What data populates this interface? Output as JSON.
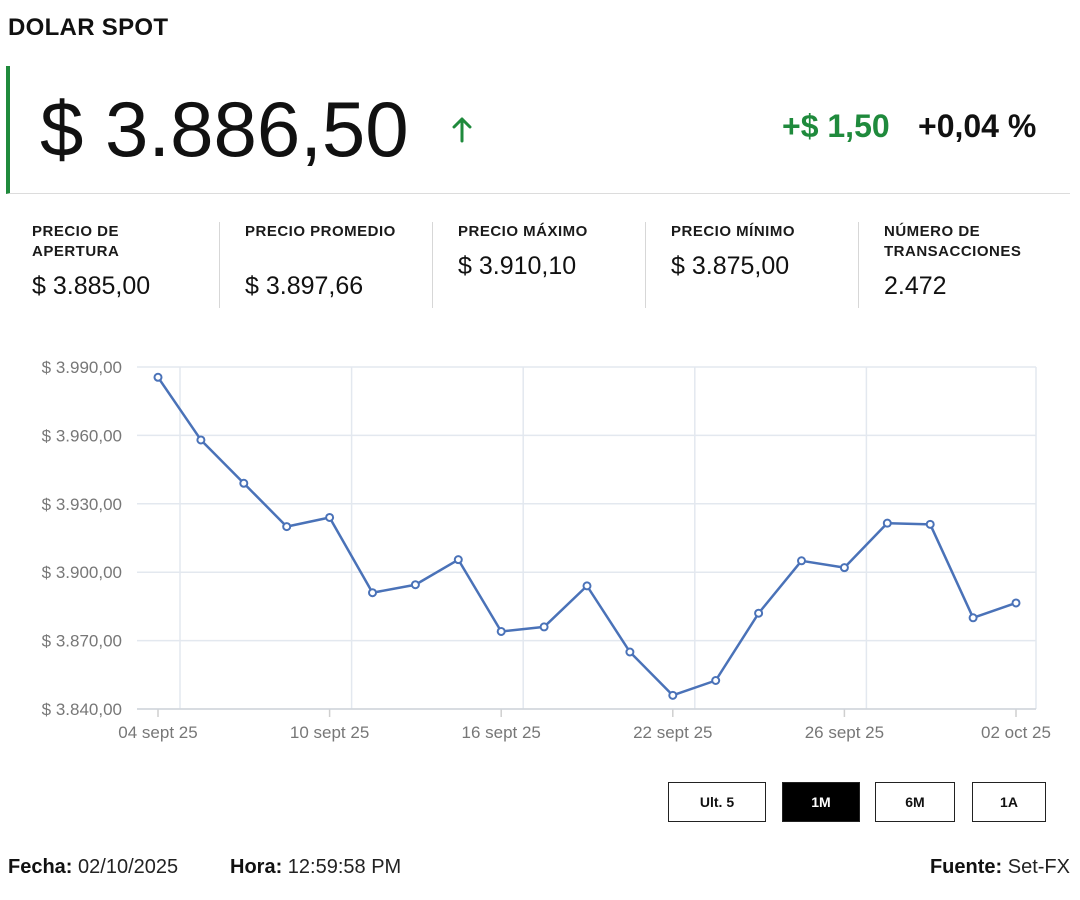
{
  "header": {
    "title": "DOLAR SPOT"
  },
  "quote": {
    "price": "$ 3.886,50",
    "direction_icon": "arrow-up-icon",
    "change": "+$ 1,50",
    "change_pct": "+0,04 %",
    "up_color": "#1f8a3c"
  },
  "stats": [
    {
      "label": "PRECIO DE APERTURA",
      "value": "$ 3.885,00"
    },
    {
      "label": "PRECIO PROMEDIO",
      "value": "$ 3.897,66"
    },
    {
      "label": "PRECIO MÁXIMO",
      "value": "$ 3.910,10"
    },
    {
      "label": "PRECIO MÍNIMO",
      "value": "$ 3.875,00"
    },
    {
      "label": "NÚMERO DE TRANSACCIONES",
      "value": "2.472"
    }
  ],
  "chart_data": {
    "type": "line",
    "line_color": "#4a72b8",
    "grid": true,
    "ylim": [
      3840,
      3990
    ],
    "y_ticks": [
      "$ 3.990,00",
      "$ 3.960,00",
      "$ 3.930,00",
      "$ 3.900,00",
      "$ 3.870,00",
      "$ 3.840,00"
    ],
    "x_ticks": [
      "04 sept 25",
      "10 sept 25",
      "16 sept 25",
      "22 sept 25",
      "26 sept 25",
      "02 oct 25"
    ],
    "x": [
      "04 sept 25",
      "05 sept 25",
      "08 sept 25",
      "09 sept 25",
      "10 sept 25",
      "11 sept 25",
      "12 sept 25",
      "15 sept 25",
      "16 sept 25",
      "17 sept 25",
      "18 sept 25",
      "19 sept 25",
      "22 sept 25",
      "23 sept 25",
      "24 sept 25",
      "25 sept 25",
      "26 sept 25",
      "29 sept 25",
      "30 sept 25",
      "01 oct 25",
      "02 oct 25"
    ],
    "values": [
      3985.5,
      3958.0,
      3939.0,
      3920.0,
      3924.0,
      3891.0,
      3894.5,
      3905.5,
      3874.0,
      3876.0,
      3894.0,
      3865.0,
      3846.0,
      3852.5,
      3882.0,
      3905.0,
      3902.0,
      3921.5,
      3921.0,
      3880.0,
      3886.5
    ]
  },
  "range_buttons": [
    {
      "label": "Ult. 5",
      "active": false
    },
    {
      "label": "1M",
      "active": true
    },
    {
      "label": "6M",
      "active": false
    },
    {
      "label": "1A",
      "active": false
    }
  ],
  "footer": {
    "date_label": "Fecha:",
    "date_value": "02/10/2025",
    "time_label": "Hora:",
    "time_value": "12:59:58 PM",
    "source_label": "Fuente:",
    "source_value": "Set-FX"
  }
}
